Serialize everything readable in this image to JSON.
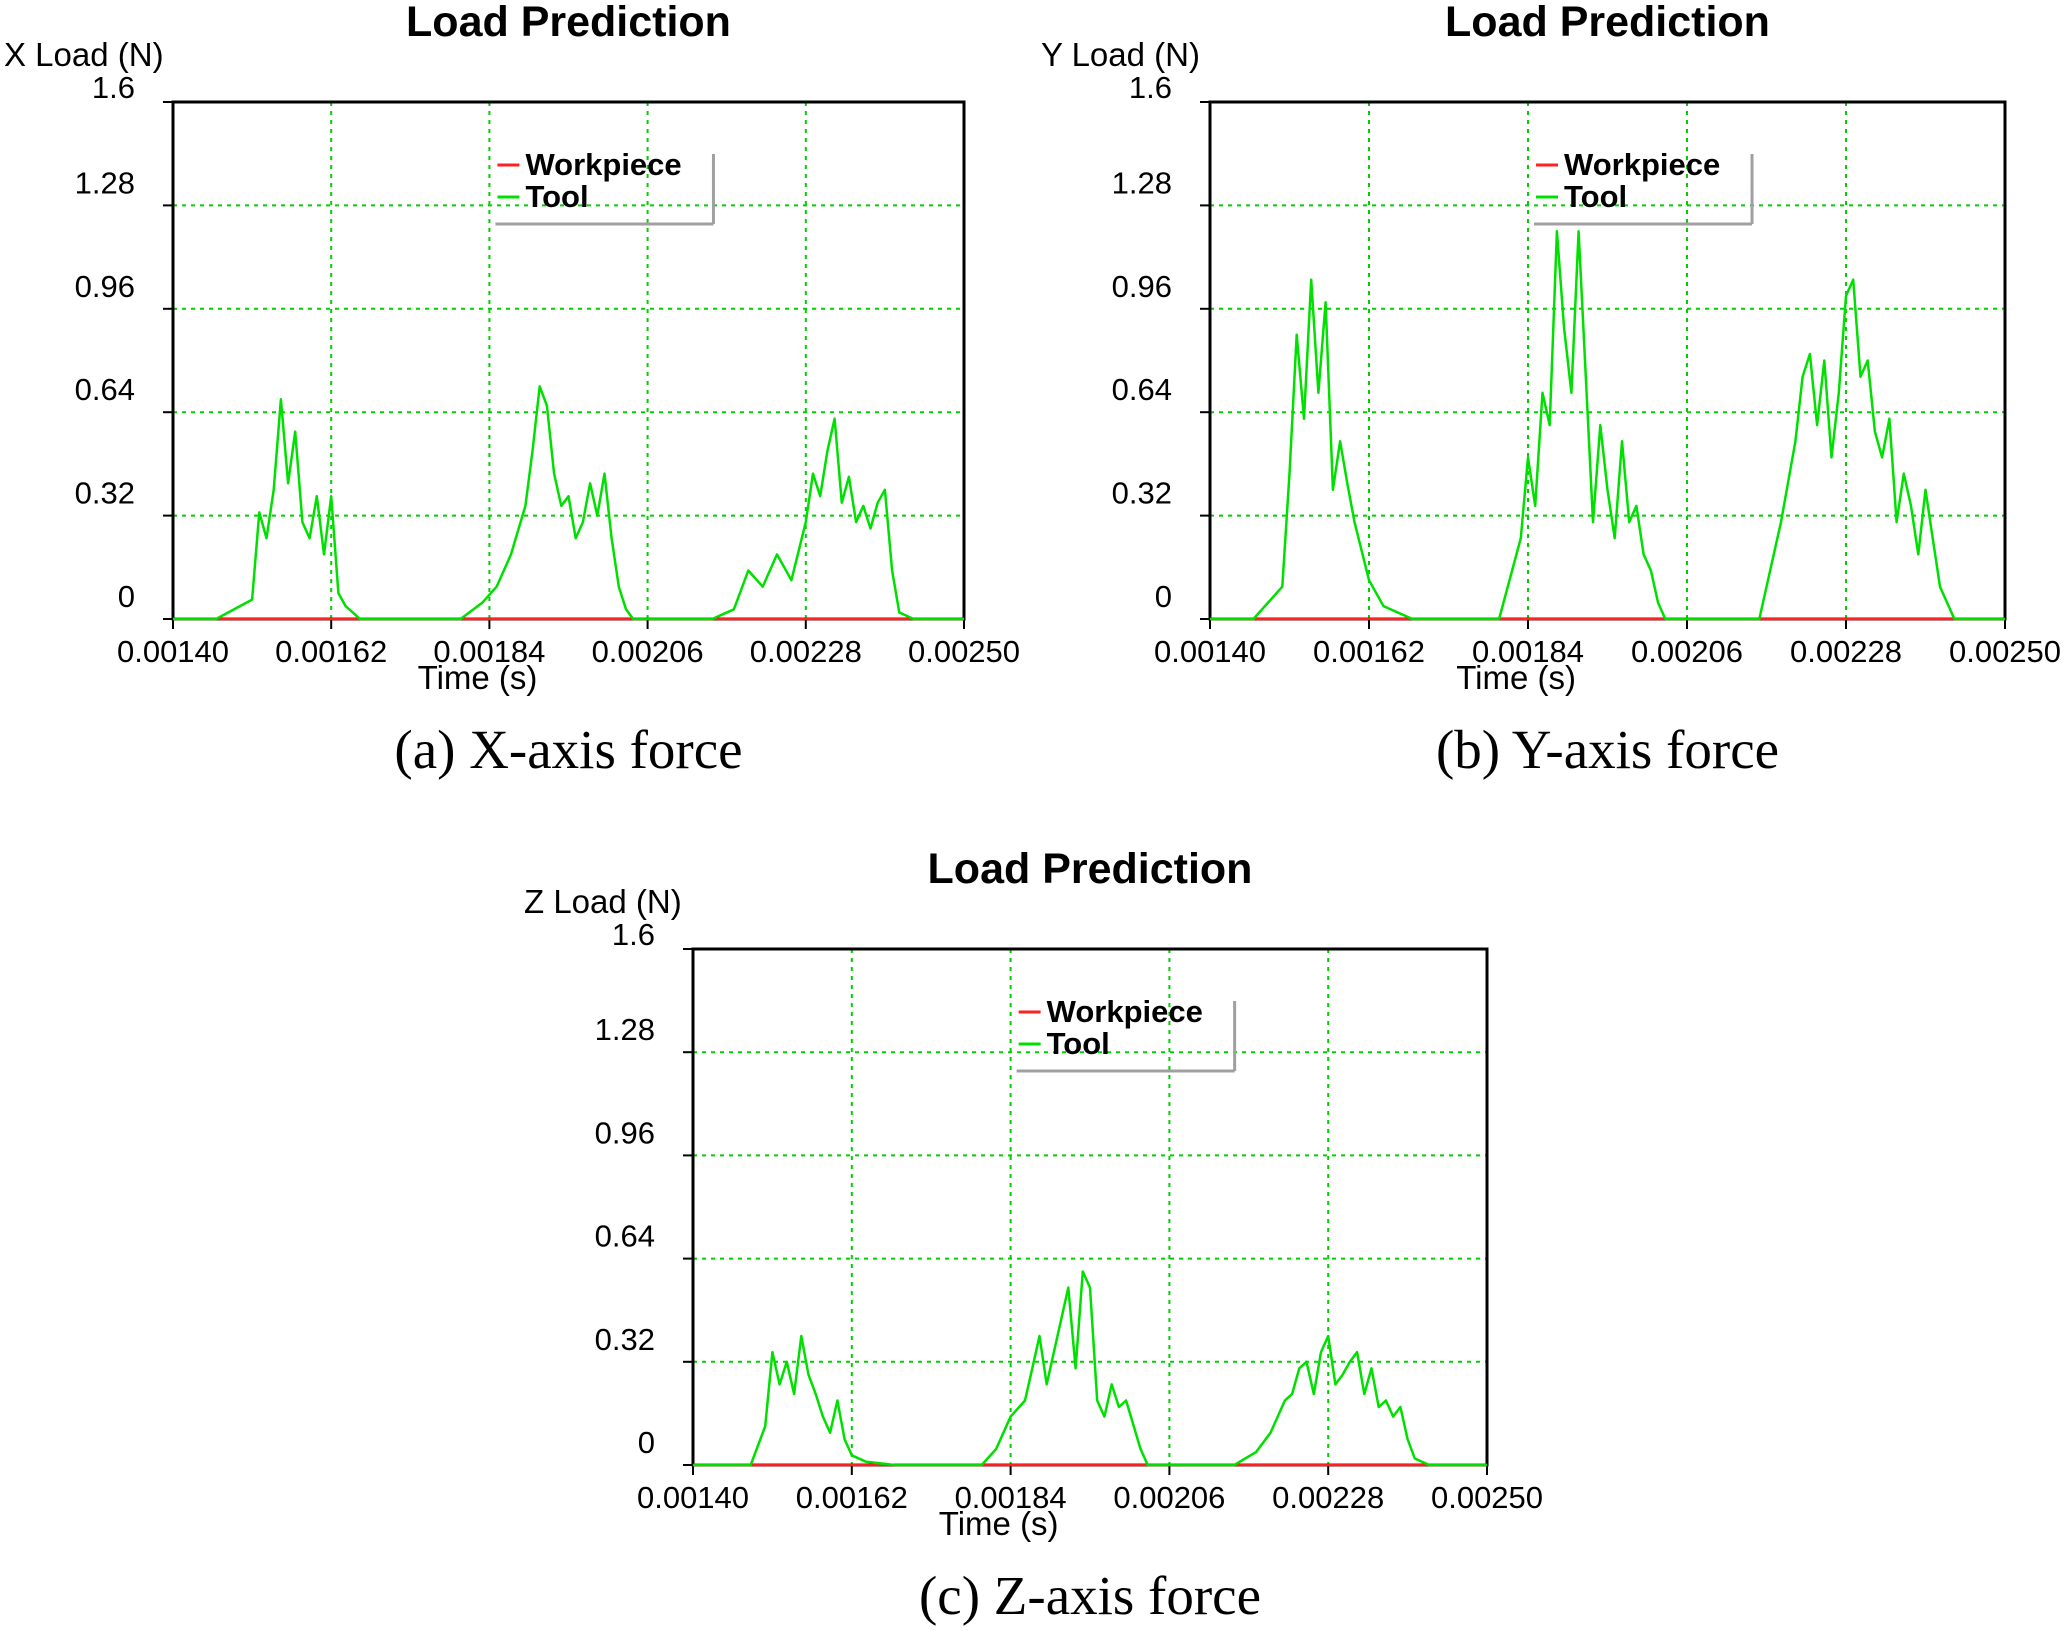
{
  "colors": {
    "workpiece": "#ff2020",
    "tool": "#00e000",
    "grid": "#00d000",
    "axis": "#000000",
    "legend_shadow": "#a0a0a0"
  },
  "chart_data": [
    {
      "type": "line",
      "title": "Load Prediction",
      "ylabel": "X Load (N)",
      "xlabel": "Time (s)",
      "caption": "(a) X-axis force",
      "xlim": [
        0.0014,
        0.0025
      ],
      "ylim": [
        0,
        1.6
      ],
      "xticks": [
        "0.00140",
        "0.00162",
        "0.00184",
        "0.00206",
        "0.00228",
        "0.00250"
      ],
      "yticks": [
        "0",
        "0.32",
        "0.64",
        "0.96",
        "1.28",
        "1.6"
      ],
      "grid": true,
      "legend_position": "top-center",
      "series": [
        {
          "name": "Workpiece",
          "x": [
            0.0014,
            0.0025
          ],
          "y": [
            0.0,
            0.0
          ]
        },
        {
          "name": "Tool",
          "x": [
            0.0014,
            0.00146,
            0.00151,
            0.00152,
            0.00153,
            0.00154,
            0.00155,
            0.00156,
            0.00157,
            0.00158,
            0.00159,
            0.0016,
            0.00161,
            0.00162,
            0.00163,
            0.00164,
            0.00166,
            0.0017,
            0.0018,
            0.00183,
            0.00185,
            0.00187,
            0.00189,
            0.0019,
            0.00191,
            0.00192,
            0.00193,
            0.00194,
            0.00195,
            0.00196,
            0.00197,
            0.00198,
            0.00199,
            0.002,
            0.00201,
            0.00202,
            0.00203,
            0.00204,
            0.00205,
            0.0021,
            0.00215,
            0.00218,
            0.0022,
            0.00222,
            0.00224,
            0.00226,
            0.00228,
            0.00229,
            0.0023,
            0.00231,
            0.00232,
            0.00233,
            0.00234,
            0.00235,
            0.00236,
            0.00237,
            0.00238,
            0.00239,
            0.0024,
            0.00241,
            0.00243,
            0.0025
          ],
          "y": [
            0.0,
            0.0,
            0.06,
            0.33,
            0.25,
            0.4,
            0.68,
            0.42,
            0.58,
            0.3,
            0.25,
            0.38,
            0.2,
            0.38,
            0.08,
            0.04,
            0.0,
            0.0,
            0.0,
            0.05,
            0.1,
            0.2,
            0.35,
            0.52,
            0.72,
            0.66,
            0.45,
            0.35,
            0.38,
            0.25,
            0.3,
            0.42,
            0.32,
            0.45,
            0.25,
            0.1,
            0.03,
            0.0,
            0.0,
            0.0,
            0.0,
            0.03,
            0.15,
            0.1,
            0.2,
            0.12,
            0.3,
            0.45,
            0.38,
            0.52,
            0.62,
            0.36,
            0.44,
            0.3,
            0.35,
            0.28,
            0.36,
            0.4,
            0.15,
            0.02,
            0.0,
            0.0
          ]
        }
      ]
    },
    {
      "type": "line",
      "title": "Load Prediction",
      "ylabel": "Y Load (N)",
      "xlabel": "Time (s)",
      "caption": "(b) Y-axis force",
      "xlim": [
        0.0014,
        0.0025
      ],
      "ylim": [
        0,
        1.6
      ],
      "xticks": [
        "0.00140",
        "0.00162",
        "0.00184",
        "0.00206",
        "0.00228",
        "0.00250"
      ],
      "yticks": [
        "0",
        "0.32",
        "0.64",
        "0.96",
        "1.28",
        "1.6"
      ],
      "grid": true,
      "legend_position": "top-center",
      "series": [
        {
          "name": "Workpiece",
          "x": [
            0.0014,
            0.0025
          ],
          "y": [
            0.0,
            0.0
          ]
        },
        {
          "name": "Tool",
          "x": [
            0.0014,
            0.00146,
            0.0015,
            0.00151,
            0.00152,
            0.00153,
            0.00154,
            0.00155,
            0.00156,
            0.00157,
            0.00158,
            0.00159,
            0.0016,
            0.00162,
            0.00164,
            0.00168,
            0.0018,
            0.00183,
            0.00184,
            0.00185,
            0.00186,
            0.00187,
            0.00188,
            0.00189,
            0.0019,
            0.00191,
            0.00192,
            0.00193,
            0.00194,
            0.00195,
            0.00196,
            0.00197,
            0.00198,
            0.00199,
            0.002,
            0.00201,
            0.00202,
            0.00203,
            0.00204,
            0.00205,
            0.0021,
            0.00216,
            0.00219,
            0.00221,
            0.00222,
            0.00223,
            0.00224,
            0.00225,
            0.00226,
            0.00227,
            0.00228,
            0.00229,
            0.0023,
            0.00231,
            0.00232,
            0.00233,
            0.00234,
            0.00235,
            0.00236,
            0.00237,
            0.00238,
            0.00239,
            0.0024,
            0.00241,
            0.00243,
            0.0025
          ],
          "y": [
            0.0,
            0.0,
            0.1,
            0.45,
            0.88,
            0.62,
            1.05,
            0.7,
            0.98,
            0.4,
            0.55,
            0.42,
            0.3,
            0.12,
            0.04,
            0.0,
            0.0,
            0.25,
            0.5,
            0.35,
            0.7,
            0.6,
            1.2,
            0.9,
            0.7,
            1.2,
            0.75,
            0.3,
            0.6,
            0.4,
            0.25,
            0.55,
            0.3,
            0.35,
            0.2,
            0.15,
            0.05,
            0.0,
            0.0,
            0.0,
            0.0,
            0.0,
            0.3,
            0.55,
            0.75,
            0.82,
            0.6,
            0.8,
            0.5,
            0.7,
            1.0,
            1.05,
            0.75,
            0.8,
            0.58,
            0.5,
            0.62,
            0.3,
            0.45,
            0.35,
            0.2,
            0.4,
            0.25,
            0.1,
            0.0,
            0.0
          ]
        }
      ]
    },
    {
      "type": "line",
      "title": "Load Prediction",
      "ylabel": "Z Load (N)",
      "xlabel": "Time (s)",
      "caption": "(c) Z-axis force",
      "xlim": [
        0.0014,
        0.0025
      ],
      "ylim": [
        0,
        1.6
      ],
      "xticks": [
        "0.00140",
        "0.00162",
        "0.00184",
        "0.00206",
        "0.00228",
        "0.00250"
      ],
      "yticks": [
        "0",
        "0.32",
        "0.64",
        "0.96",
        "1.28",
        "1.6"
      ],
      "grid": true,
      "legend_position": "top-center",
      "series": [
        {
          "name": "Workpiece",
          "x": [
            0.0014,
            0.0025
          ],
          "y": [
            0.0,
            0.0
          ]
        },
        {
          "name": "Tool",
          "x": [
            0.0014,
            0.00148,
            0.0015,
            0.00151,
            0.00152,
            0.00153,
            0.00154,
            0.00155,
            0.00156,
            0.00157,
            0.00158,
            0.00159,
            0.0016,
            0.00161,
            0.00162,
            0.00164,
            0.00168,
            0.0018,
            0.00182,
            0.00184,
            0.00186,
            0.00187,
            0.00188,
            0.00189,
            0.0019,
            0.00191,
            0.00192,
            0.00193,
            0.00194,
            0.00195,
            0.00196,
            0.00197,
            0.00198,
            0.00199,
            0.002,
            0.00202,
            0.00203,
            0.00204,
            0.0021,
            0.00215,
            0.00218,
            0.0022,
            0.00222,
            0.00223,
            0.00224,
            0.00225,
            0.00226,
            0.00227,
            0.00228,
            0.00229,
            0.0023,
            0.00231,
            0.00232,
            0.00233,
            0.00234,
            0.00235,
            0.00236,
            0.00237,
            0.00238,
            0.00239,
            0.0024,
            0.00242,
            0.0025
          ],
          "y": [
            0.0,
            0.0,
            0.12,
            0.35,
            0.25,
            0.32,
            0.22,
            0.4,
            0.28,
            0.22,
            0.15,
            0.1,
            0.2,
            0.08,
            0.03,
            0.01,
            0.0,
            0.0,
            0.05,
            0.15,
            0.2,
            0.3,
            0.4,
            0.25,
            0.35,
            0.45,
            0.55,
            0.3,
            0.6,
            0.55,
            0.2,
            0.15,
            0.25,
            0.18,
            0.2,
            0.05,
            0.0,
            0.0,
            0.0,
            0.0,
            0.04,
            0.1,
            0.2,
            0.22,
            0.3,
            0.32,
            0.22,
            0.35,
            0.4,
            0.25,
            0.28,
            0.32,
            0.35,
            0.22,
            0.3,
            0.18,
            0.2,
            0.15,
            0.18,
            0.08,
            0.02,
            0.0,
            0.0
          ]
        }
      ]
    }
  ]
}
